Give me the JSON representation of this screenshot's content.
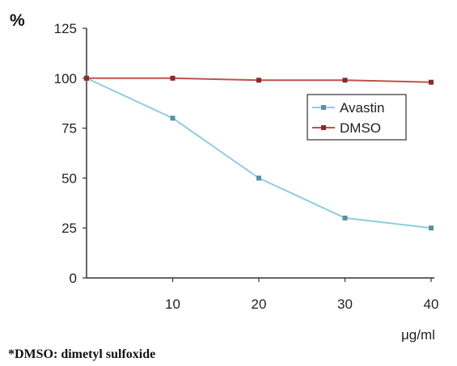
{
  "chart_data": {
    "type": "line",
    "y_unit_label": "%",
    "x_unit_label": "μg/ml",
    "footnote": "*DMSO: dimetyl sulfoxide",
    "x_ticks": [
      10,
      20,
      30,
      40
    ],
    "y_ticks": [
      0,
      25,
      50,
      75,
      100,
      125
    ],
    "xlim": [
      0,
      40
    ],
    "ylim": [
      0,
      125
    ],
    "grid": false,
    "legend_position": "right",
    "series": [
      {
        "name": "Avastin",
        "color": "#8ecde0",
        "marker": "square",
        "x": [
          0,
          10,
          20,
          30,
          40
        ],
        "y": [
          100,
          80,
          50,
          30,
          25
        ]
      },
      {
        "name": "DMSO",
        "color": "#c0504d",
        "marker": "square",
        "x": [
          0,
          10,
          20,
          30,
          40
        ],
        "y": [
          100,
          100,
          99,
          99,
          98
        ]
      }
    ]
  }
}
